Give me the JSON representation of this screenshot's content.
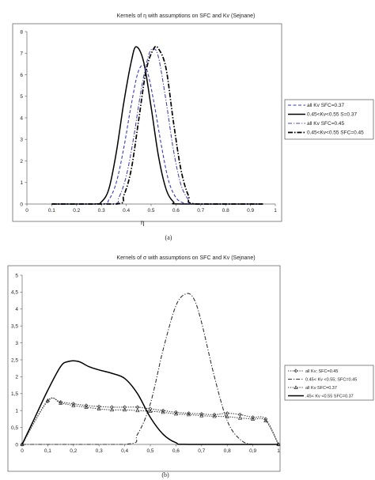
{
  "chart_data": [
    {
      "type": "line",
      "title": "Kernels of η with assumptions on SFC and Kv  (Sejnane)",
      "xlabel": "η",
      "ylabel": "",
      "caption": "(a)",
      "xlim": [
        0,
        1
      ],
      "ylim": [
        0,
        8
      ],
      "x_ticks": [
        "0",
        "0.1",
        "0.2",
        "0.3",
        "0.4",
        "0.5",
        "0.6",
        "0.7",
        "0.8",
        "0.9",
        "1"
      ],
      "y_ticks": [
        "0",
        "1",
        "2",
        "3",
        "4",
        "5",
        "6",
        "7",
        "8"
      ],
      "grid": false,
      "legend_position": "right",
      "series": [
        {
          "name": "all Kv SFC=0.37",
          "color": "#3a3ab8",
          "style": "dashed",
          "x": [
            0.1,
            0.3,
            0.33,
            0.36,
            0.39,
            0.42,
            0.45,
            0.48,
            0.51,
            0.54,
            0.57,
            0.6,
            0.63,
            0.66,
            0.95
          ],
          "y": [
            0,
            0,
            0.2,
            1.0,
            2.6,
            4.6,
            6.2,
            6.3,
            4.8,
            2.8,
            1.1,
            0.3,
            0.05,
            0,
            0
          ]
        },
        {
          "name": "0.45<Kv<0.55 S=0.37",
          "color": "#000000",
          "style": "solid",
          "x": [
            0.1,
            0.27,
            0.3,
            0.33,
            0.36,
            0.39,
            0.42,
            0.44,
            0.47,
            0.5,
            0.53,
            0.56,
            0.59,
            0.62,
            0.95
          ],
          "y": [
            0,
            0,
            0.1,
            0.7,
            2.4,
            4.7,
            6.6,
            7.3,
            6.6,
            4.5,
            2.2,
            0.7,
            0.1,
            0,
            0
          ]
        },
        {
          "name": "all Kv SFC=0.45",
          "color": "#4444aa",
          "style": "dashdot",
          "x": [
            0.1,
            0.34,
            0.37,
            0.4,
            0.43,
            0.46,
            0.49,
            0.51,
            0.53,
            0.56,
            0.59,
            0.62,
            0.65,
            0.67,
            0.95
          ],
          "y": [
            0,
            0,
            0.3,
            1.3,
            3.1,
            5.3,
            6.9,
            7.2,
            6.8,
            4.8,
            2.5,
            0.9,
            0.2,
            0,
            0
          ]
        },
        {
          "name": "0.45<Kv<0.55 SFC=0.45",
          "color": "#000000",
          "style": "dashdotbold",
          "x": [
            0.1,
            0.36,
            0.39,
            0.42,
            0.45,
            0.48,
            0.51,
            0.53,
            0.56,
            0.59,
            0.62,
            0.65,
            0.68,
            0.95
          ],
          "y": [
            0,
            0,
            0.4,
            1.6,
            3.9,
            6.2,
            7.2,
            7.2,
            6.3,
            3.8,
            1.6,
            0.4,
            0,
            0
          ]
        }
      ]
    },
    {
      "type": "line",
      "title": "Kernels of σ with assumptions on SFC and Kv (Sejnane)",
      "xlabel": "σ",
      "ylabel": "",
      "caption": "(b)",
      "xlim": [
        0,
        1
      ],
      "ylim": [
        0,
        5
      ],
      "x_ticks": [
        "0",
        "0,1",
        "0,2",
        "0,3",
        "0,4",
        "0,5",
        "0,6",
        "0,7",
        "0,8",
        "0,9",
        "1"
      ],
      "y_ticks": [
        "0",
        "0,5",
        "1",
        "1,5",
        "2",
        "2,5",
        "3",
        "3,5",
        "4",
        "4,5",
        "5"
      ],
      "grid": false,
      "legend_position": "right",
      "series": [
        {
          "name": "all Kv; SFC=0.45",
          "color": "#333333",
          "style": "dotted-diamond",
          "x": [
            0,
            0.1,
            0.15,
            0.2,
            0.25,
            0.3,
            0.35,
            0.4,
            0.45,
            0.5,
            0.55,
            0.6,
            0.65,
            0.7,
            0.75,
            0.8,
            0.85,
            0.9,
            0.95,
            1.0
          ],
          "y": [
            0,
            1.28,
            1.25,
            1.2,
            1.15,
            1.12,
            1.1,
            1.1,
            1.1,
            1.05,
            1.0,
            0.95,
            0.92,
            0.9,
            0.88,
            0.92,
            0.88,
            0.8,
            0.75,
            0
          ]
        },
        {
          "name": "0.45< Kv <0.55; SFC=0.45",
          "color": "#333333",
          "style": "dashdot",
          "x": [
            0,
            0.4,
            0.45,
            0.5,
            0.55,
            0.6,
            0.64,
            0.67,
            0.7,
            0.75,
            0.8,
            0.85,
            0.9,
            1.0
          ],
          "y": [
            0,
            0,
            0.3,
            1.2,
            2.8,
            4.1,
            4.45,
            4.3,
            3.6,
            2.0,
            0.7,
            0.15,
            0,
            0
          ]
        },
        {
          "name": "all Kv SFC=0.37",
          "color": "#333333",
          "style": "dotted-triangle",
          "x": [
            0,
            0.1,
            0.15,
            0.2,
            0.25,
            0.3,
            0.35,
            0.4,
            0.45,
            0.5,
            0.55,
            0.6,
            0.65,
            0.7,
            0.75,
            0.8,
            0.85,
            0.9,
            0.95,
            1.0
          ],
          "y": [
            0,
            1.3,
            1.22,
            1.15,
            1.1,
            1.05,
            1.02,
            1.02,
            1.0,
            0.98,
            0.95,
            0.9,
            0.88,
            0.85,
            0.83,
            0.82,
            0.78,
            0.75,
            0.7,
            0
          ]
        },
        {
          "name": ".45< Kv <0.55 SFC=0.37",
          "color": "#000000",
          "style": "solid",
          "x": [
            0,
            0.05,
            0.1,
            0.15,
            0.18,
            0.22,
            0.26,
            0.3,
            0.35,
            0.4,
            0.45,
            0.5,
            0.55,
            0.6,
            0.65,
            1.0
          ],
          "y": [
            0,
            0.8,
            1.6,
            2.3,
            2.45,
            2.45,
            2.3,
            2.2,
            2.1,
            1.95,
            1.5,
            0.8,
            0.3,
            0.05,
            0,
            0
          ]
        }
      ]
    }
  ]
}
